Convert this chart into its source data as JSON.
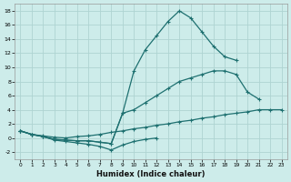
{
  "xlabel": "Humidex (Indice chaleur)",
  "background_color": "#cdecea",
  "grid_color": "#aed4d2",
  "line_color": "#1e7070",
  "xlim": [
    -0.5,
    23.5
  ],
  "ylim": [
    -3,
    19
  ],
  "yticks": [
    -2,
    0,
    2,
    4,
    6,
    8,
    10,
    12,
    14,
    16,
    18
  ],
  "xticks": [
    0,
    1,
    2,
    3,
    4,
    5,
    6,
    7,
    8,
    9,
    10,
    11,
    12,
    13,
    14,
    15,
    16,
    17,
    18,
    19,
    20,
    21,
    22,
    23
  ],
  "line_spike_x": [
    0,
    1,
    2,
    3,
    4,
    5,
    6,
    7,
    8,
    9,
    10,
    11,
    12,
    13,
    14,
    15,
    16,
    17,
    18,
    19,
    20,
    21,
    22,
    23
  ],
  "line_spike_y": [
    1.0,
    0.5,
    0.2,
    -0.2,
    -0.3,
    -0.4,
    -0.4,
    -0.6,
    -0.8,
    3.5,
    9.5,
    12.5,
    14.5,
    16.5,
    18.0,
    17.0,
    15.0,
    13.0,
    11.5,
    11.0,
    null,
    null,
    null,
    null
  ],
  "line_mid_x": [
    0,
    1,
    2,
    3,
    4,
    5,
    6,
    7,
    8,
    9,
    10,
    11,
    12,
    13,
    14,
    15,
    16,
    17,
    18,
    19,
    20,
    21,
    22,
    23
  ],
  "line_mid_y": [
    1.0,
    0.5,
    0.2,
    -0.2,
    -0.3,
    -0.4,
    -0.4,
    -0.6,
    -0.8,
    3.5,
    4.0,
    5.0,
    6.0,
    7.0,
    8.0,
    8.5,
    9.0,
    9.5,
    9.5,
    9.0,
    6.5,
    5.5,
    null,
    null
  ],
  "line_neg_x": [
    0,
    1,
    2,
    3,
    4,
    5,
    6,
    7,
    8,
    9,
    10,
    11,
    12,
    13,
    14,
    15,
    16,
    17,
    18,
    19,
    20,
    21,
    22,
    23
  ],
  "line_neg_y": [
    1.0,
    0.5,
    0.2,
    -0.3,
    -0.5,
    -0.7,
    -0.9,
    -1.2,
    -1.7,
    -1.0,
    -0.5,
    -0.2,
    0.0,
    null,
    null,
    null,
    null,
    null,
    null,
    null,
    null,
    null,
    null,
    null
  ],
  "line_flat_x": [
    0,
    1,
    2,
    3,
    4,
    5,
    6,
    7,
    8,
    9,
    10,
    11,
    12,
    13,
    14,
    15,
    16,
    17,
    18,
    19,
    20,
    21,
    22,
    23
  ],
  "line_flat_y": [
    1.0,
    0.5,
    0.3,
    0.1,
    0.0,
    0.2,
    0.3,
    0.5,
    0.8,
    1.0,
    1.3,
    1.5,
    1.8,
    2.0,
    2.3,
    2.5,
    2.8,
    3.0,
    3.3,
    3.5,
    3.7,
    4.0,
    4.0,
    4.0
  ]
}
